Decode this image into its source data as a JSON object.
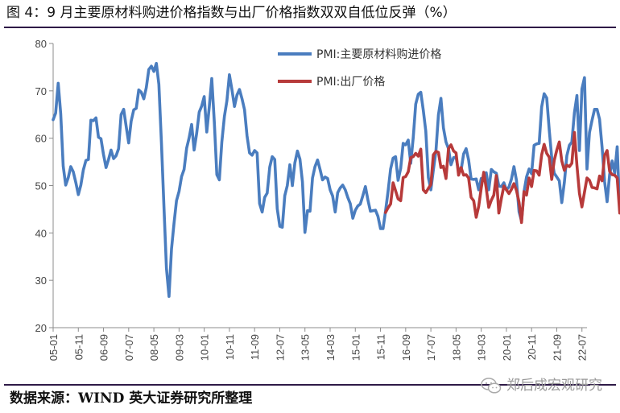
{
  "title": "图 4：9 月主要原材料购进价格指数与出厂价格指数双双自低位反弹（%）",
  "source": "数据来源：WIND  英大证券研究所整理",
  "watermark": "郑后成宏观研究",
  "chart_data": {
    "type": "line",
    "title": "图 4：9 月主要原材料购进价格指数与出厂价格指数双双自低位反弹（%）",
    "xlabel": "",
    "ylabel": "",
    "ylim": [
      20,
      80
    ],
    "yticks": [
      20,
      30,
      40,
      50,
      60,
      70,
      80
    ],
    "grid": false,
    "legend_position": "top-center",
    "x_tick_labels": [
      "05-01",
      "05-11",
      "06-09",
      "07-07",
      "08-05",
      "09-03",
      "10-01",
      "10-11",
      "11-09",
      "12-07",
      "13-05",
      "14-03",
      "15-01",
      "15-11",
      "16-09",
      "17-07",
      "18-05",
      "19-03",
      "20-01",
      "20-11",
      "21-09",
      "22-07"
    ],
    "x_start": "2005-01",
    "x_end": "2022-09",
    "series": [
      {
        "name": "PMI:主要原材料购进价格",
        "color": "#4a7dbf",
        "start": "2005-01",
        "values": [
          63.9,
          65.3,
          71.6,
          65.2,
          54.1,
          50.1,
          51.7,
          54.0,
          52.9,
          50.7,
          48.1,
          50.1,
          53.3,
          55.3,
          55.5,
          63.8,
          63.7,
          64.3,
          60.2,
          59.9,
          56.6,
          53.8,
          55.5,
          57.5,
          55.7,
          56.3,
          57.8,
          65.0,
          66.1,
          62.5,
          59.0,
          63.6,
          66.0,
          66.3,
          70.2,
          69.7,
          68.3,
          70.7,
          74.5,
          75.2,
          74.1,
          75.8,
          71.4,
          59.0,
          45.6,
          32.6,
          26.6,
          36.6,
          42.0,
          46.8,
          48.8,
          51.9,
          53.4,
          57.9,
          60.1,
          62.9,
          57.5,
          61.1,
          65.5,
          66.8,
          68.8,
          61.3,
          66.6,
          72.6,
          63.3,
          52.3,
          51.2,
          59.2,
          64.6,
          67.9,
          73.4,
          70.3,
          66.7,
          69.1,
          70.3,
          68.3,
          66.0,
          60.5,
          56.9,
          56.4,
          57.4,
          56.9,
          46.2,
          44.4,
          47.5,
          48.4,
          53.9,
          56.1,
          55.5,
          45.1,
          41.4,
          41.2,
          47.9,
          50.0,
          54.4,
          50.0,
          54.8,
          57.3,
          55.6,
          50.8,
          40.1,
          44.7,
          44.6,
          51.6,
          54.0,
          55.4,
          53.4,
          51.2,
          51.8,
          51.5,
          49.1,
          47.8,
          44.4,
          48.5,
          49.5,
          50.1,
          49.1,
          47.5,
          46.2,
          43.1,
          44.8,
          45.7,
          46.1,
          47.9,
          49.8,
          47.0,
          44.6,
          44.7,
          44.8,
          43.5,
          40.9,
          40.9,
          44.6,
          48.7,
          53.5,
          55.8,
          56.1,
          51.1,
          53.6,
          58.9,
          58.6,
          59.6,
          54.7,
          60.1,
          67.2,
          69.3,
          69.7,
          65.9,
          61.5,
          51.7,
          49.1,
          53.3,
          57.3,
          64.9,
          68.4,
          62.2,
          59.2,
          57.8,
          54.4,
          55.9,
          56.0,
          53.0,
          53.2,
          56.7,
          57.8,
          55.4,
          51.4,
          51.3,
          51.4,
          49.1,
          51.5,
          51.3,
          52.7,
          49.1,
          53.4,
          52.9,
          52.6,
          49.9,
          49.8,
          50.6,
          49.1,
          49.7,
          51.4,
          54.0,
          51.1,
          44.5,
          42.5,
          48.7,
          51.8,
          53.5,
          52.5,
          58.5,
          58.8,
          58.9,
          66.6,
          69.4,
          68.5,
          61.8,
          55.9,
          52.6,
          51.8,
          51.0,
          46.4,
          50.7,
          56.3,
          58.5,
          59.2,
          65.4,
          69.0,
          57.4,
          70.4,
          72.8,
          53.5,
          61.2,
          63.8,
          66.1,
          66.1,
          64.0,
          58.0,
          50.8,
          46.6,
          52.3,
          55.2,
          52.6,
          58.2,
          44.7,
          46.5,
          51.3
        ]
      },
      {
        "name": "PMI:出厂价格",
        "color": "#b73a3a",
        "start": "2016-01",
        "values": [
          44.3,
          45.3,
          46.1,
          50.6,
          48.9,
          47.2,
          46.8,
          51.7,
          51.9,
          52.9,
          55.9,
          56.1,
          56.8,
          56.2,
          57.7,
          49.1,
          48.5,
          49.4,
          50.2,
          56.5,
          57.2,
          57.0,
          53.8,
          54.1,
          51.5,
          57.8,
          58.6,
          57.3,
          56.9,
          52.2,
          53.8,
          52.2,
          52.3,
          51.6,
          47.5,
          46.8,
          43.3,
          45.6,
          49.5,
          52.8,
          49.4,
          45.4,
          46.9,
          48.0,
          52.1,
          44.2,
          47.3,
          49.9,
          49.1,
          48.3,
          49.2,
          50.4,
          49.0,
          46.5,
          42.2,
          48.7,
          48.0,
          51.6,
          49.8,
          53.2,
          53.1,
          52.2,
          56.5,
          58.7,
          56.8,
          56.0,
          51.3,
          55.3,
          57.5,
          59.2,
          55.2,
          53.2,
          54.3,
          54.0,
          54.7,
          61.2,
          54.3,
          48.4,
          45.5,
          48.6,
          51.6,
          51.1,
          49.6,
          49.5,
          49.3,
          52.0,
          51.0,
          56.4,
          57.4,
          53.0,
          52.3,
          52.2,
          51.6,
          44.2,
          47.4,
          47.3
        ]
      }
    ]
  }
}
